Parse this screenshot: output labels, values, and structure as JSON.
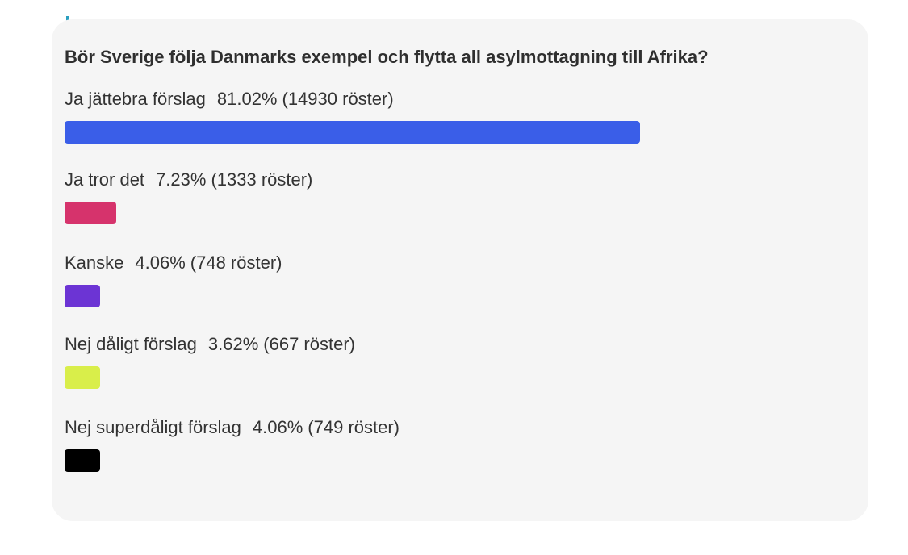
{
  "poll": {
    "question": "Bör Sverige följa Danmarks exempel och flytta all asylmottagning till Afrika?"
  },
  "chart_data": {
    "type": "bar",
    "title": "Bör Sverige följa Danmarks exempel och flytta all asylmottagning till Afrika?",
    "categories": [
      "Ja jättebra förslag",
      "Ja tror det",
      "Kanske",
      "Nej dåligt förslag",
      "Nej superdåligt förslag"
    ],
    "values": [
      81.02,
      7.23,
      4.06,
      3.62,
      4.06
    ],
    "vote_counts": [
      14930,
      1333,
      748,
      667,
      749
    ],
    "options": [
      {
        "label": "Ja jättebra förslag",
        "percent_text": "81.02%",
        "count_text": "(14930 röster)",
        "percent": 81.02,
        "color": "#3a5ee8"
      },
      {
        "label": "Ja tror det",
        "percent_text": "7.23%",
        "count_text": "(1333 röster)",
        "percent": 7.23,
        "color": "#d6336c"
      },
      {
        "label": "Kanske",
        "percent_text": "4.06%",
        "count_text": "(748 röster)",
        "percent": 4.06,
        "color": "#6c34d4"
      },
      {
        "label": "Nej dåligt förslag",
        "percent_text": "3.62%",
        "count_text": "(667 röster)",
        "percent": 3.62,
        "color": "#d9ee4a"
      },
      {
        "label": "Nej superdåligt förslag",
        "percent_text": "4.06%",
        "count_text": "(749 röster)",
        "percent": 4.06,
        "color": "#000000"
      }
    ]
  }
}
